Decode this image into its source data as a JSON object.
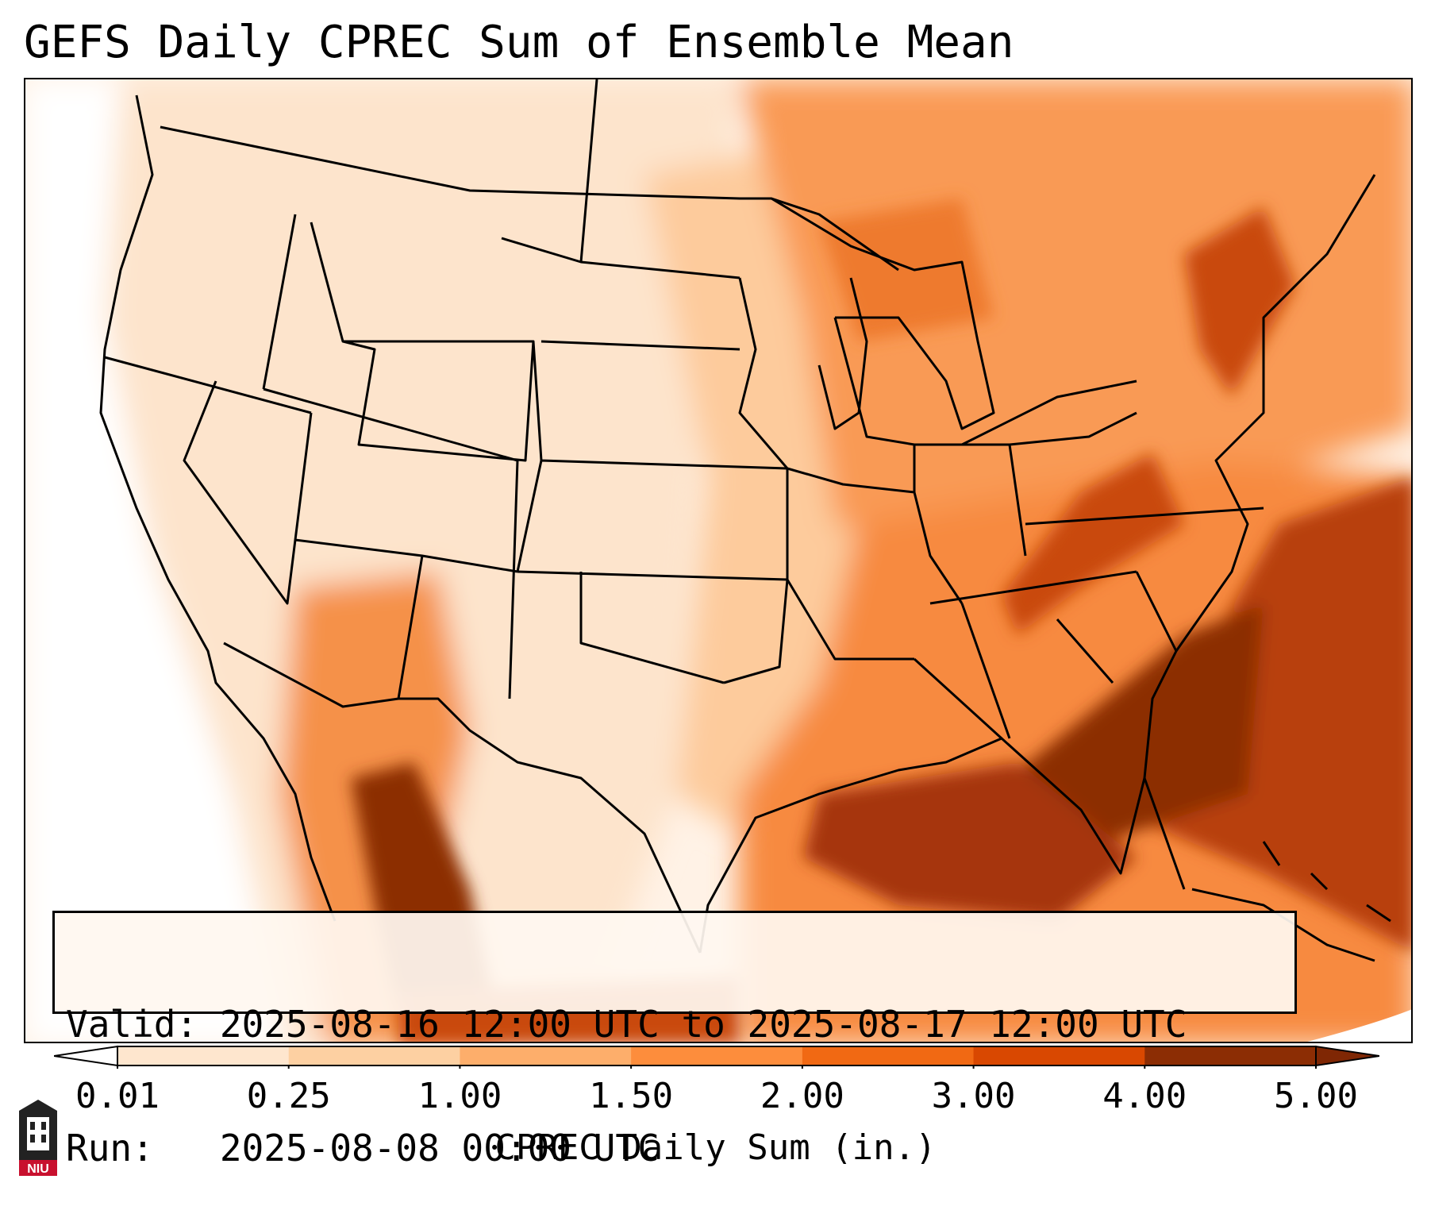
{
  "title": "GEFS Daily CPREC Sum of Ensemble Mean",
  "info": {
    "valid_label": "Valid:",
    "valid_value": "2025-08-16 12:00 UTC to 2025-08-17 12:00 UTC",
    "run_label": "Run:",
    "run_value": "2025-08-08 00:00 UTC"
  },
  "colorbar": {
    "label": "CPREC Daily Sum (in.)",
    "ticks": [
      "0.01",
      "0.25",
      "1.00",
      "1.50",
      "2.00",
      "3.00",
      "4.00",
      "5.00"
    ],
    "colors": [
      "#fff5eb",
      "#fee6ce",
      "#fdd0a2",
      "#fdae6b",
      "#fd8d3c",
      "#f16913",
      "#d94801",
      "#8c2d04"
    ],
    "under_color": "#ffffff",
    "over_color": "#7f2704"
  },
  "logo": {
    "text": "NIU",
    "color": "#c8102e"
  }
}
